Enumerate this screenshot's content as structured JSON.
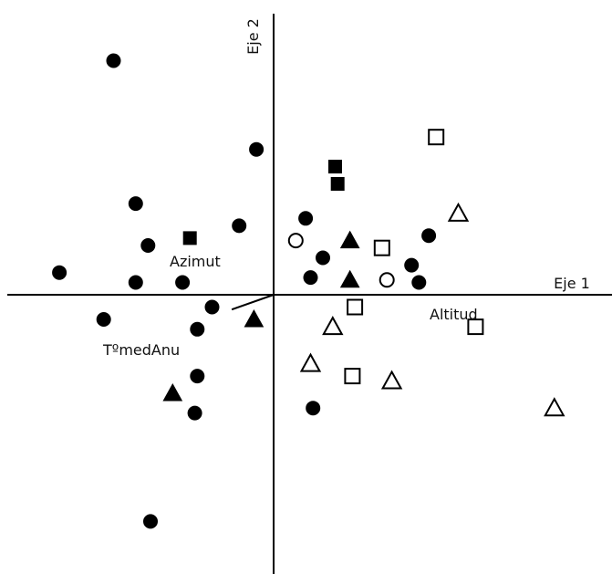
{
  "chart_data": {
    "type": "scatter",
    "title": "",
    "xlabel": "Eje 1",
    "ylabel": "Eje 2",
    "xlim": [
      -1.0,
      1.2
    ],
    "ylim": [
      -1.0,
      1.0
    ],
    "grid": false,
    "legend": "none",
    "colors": {
      "axis": "#000000",
      "filled": "#000000",
      "hollow": "#ffffff"
    },
    "series": [
      {
        "marker": "filled-circle",
        "points": [
          {
            "x": -0.65,
            "y": 0.95
          },
          {
            "x": -0.07,
            "y": 0.59
          },
          {
            "x": -0.56,
            "y": 0.37
          },
          {
            "x": -0.14,
            "y": 0.28
          },
          {
            "x": -0.51,
            "y": 0.2
          },
          {
            "x": -0.87,
            "y": 0.09
          },
          {
            "x": -0.56,
            "y": 0.05
          },
          {
            "x": -0.37,
            "y": 0.05
          },
          {
            "x": 0.13,
            "y": 0.31
          },
          {
            "x": 0.2,
            "y": 0.15
          },
          {
            "x": 0.15,
            "y": 0.07
          },
          {
            "x": 0.63,
            "y": 0.24
          },
          {
            "x": 0.56,
            "y": 0.12
          },
          {
            "x": 0.59,
            "y": 0.05
          },
          {
            "x": -0.25,
            "y": -0.05
          },
          {
            "x": -0.69,
            "y": -0.1
          },
          {
            "x": -0.31,
            "y": -0.14
          },
          {
            "x": -0.31,
            "y": -0.33
          },
          {
            "x": -0.32,
            "y": -0.48
          },
          {
            "x": 0.16,
            "y": -0.46
          },
          {
            "x": -0.5,
            "y": -0.92
          }
        ]
      },
      {
        "marker": "filled-square",
        "points": [
          {
            "x": 0.25,
            "y": 0.52
          },
          {
            "x": 0.26,
            "y": 0.45
          },
          {
            "x": -0.34,
            "y": 0.23
          }
        ]
      },
      {
        "marker": "filled-triangle",
        "points": [
          {
            "x": 0.31,
            "y": 0.22
          },
          {
            "x": 0.31,
            "y": 0.06
          },
          {
            "x": -0.08,
            "y": -0.1
          },
          {
            "x": -0.41,
            "y": -0.4
          }
        ]
      },
      {
        "marker": "hollow-square",
        "points": [
          {
            "x": 0.66,
            "y": 0.64
          },
          {
            "x": 0.44,
            "y": 0.19
          },
          {
            "x": 0.33,
            "y": -0.05
          },
          {
            "x": 0.82,
            "y": -0.13
          },
          {
            "x": 0.32,
            "y": -0.33
          }
        ]
      },
      {
        "marker": "hollow-circle",
        "points": [
          {
            "x": 0.09,
            "y": 0.22
          },
          {
            "x": 0.46,
            "y": 0.06
          }
        ]
      },
      {
        "marker": "hollow-triangle",
        "points": [
          {
            "x": 0.75,
            "y": 0.33
          },
          {
            "x": 0.24,
            "y": -0.13
          },
          {
            "x": 0.15,
            "y": -0.28
          },
          {
            "x": 0.48,
            "y": -0.35
          },
          {
            "x": 1.14,
            "y": -0.46
          }
        ]
      }
    ],
    "vectors": [
      {
        "name": "Azimut",
        "x": -0.17,
        "y": -0.06
      },
      {
        "name": "TºmedAnu",
        "x": -0.17,
        "y": -0.06
      },
      {
        "name": "Altitud",
        "x": 0.54,
        "y": 0.0
      }
    ]
  },
  "labels": {
    "x_axis": "Eje 1",
    "y_axis": "Eje 2",
    "azimut": "Azimut",
    "tmed": "TºmedAnu",
    "altitud": "Altitud"
  }
}
